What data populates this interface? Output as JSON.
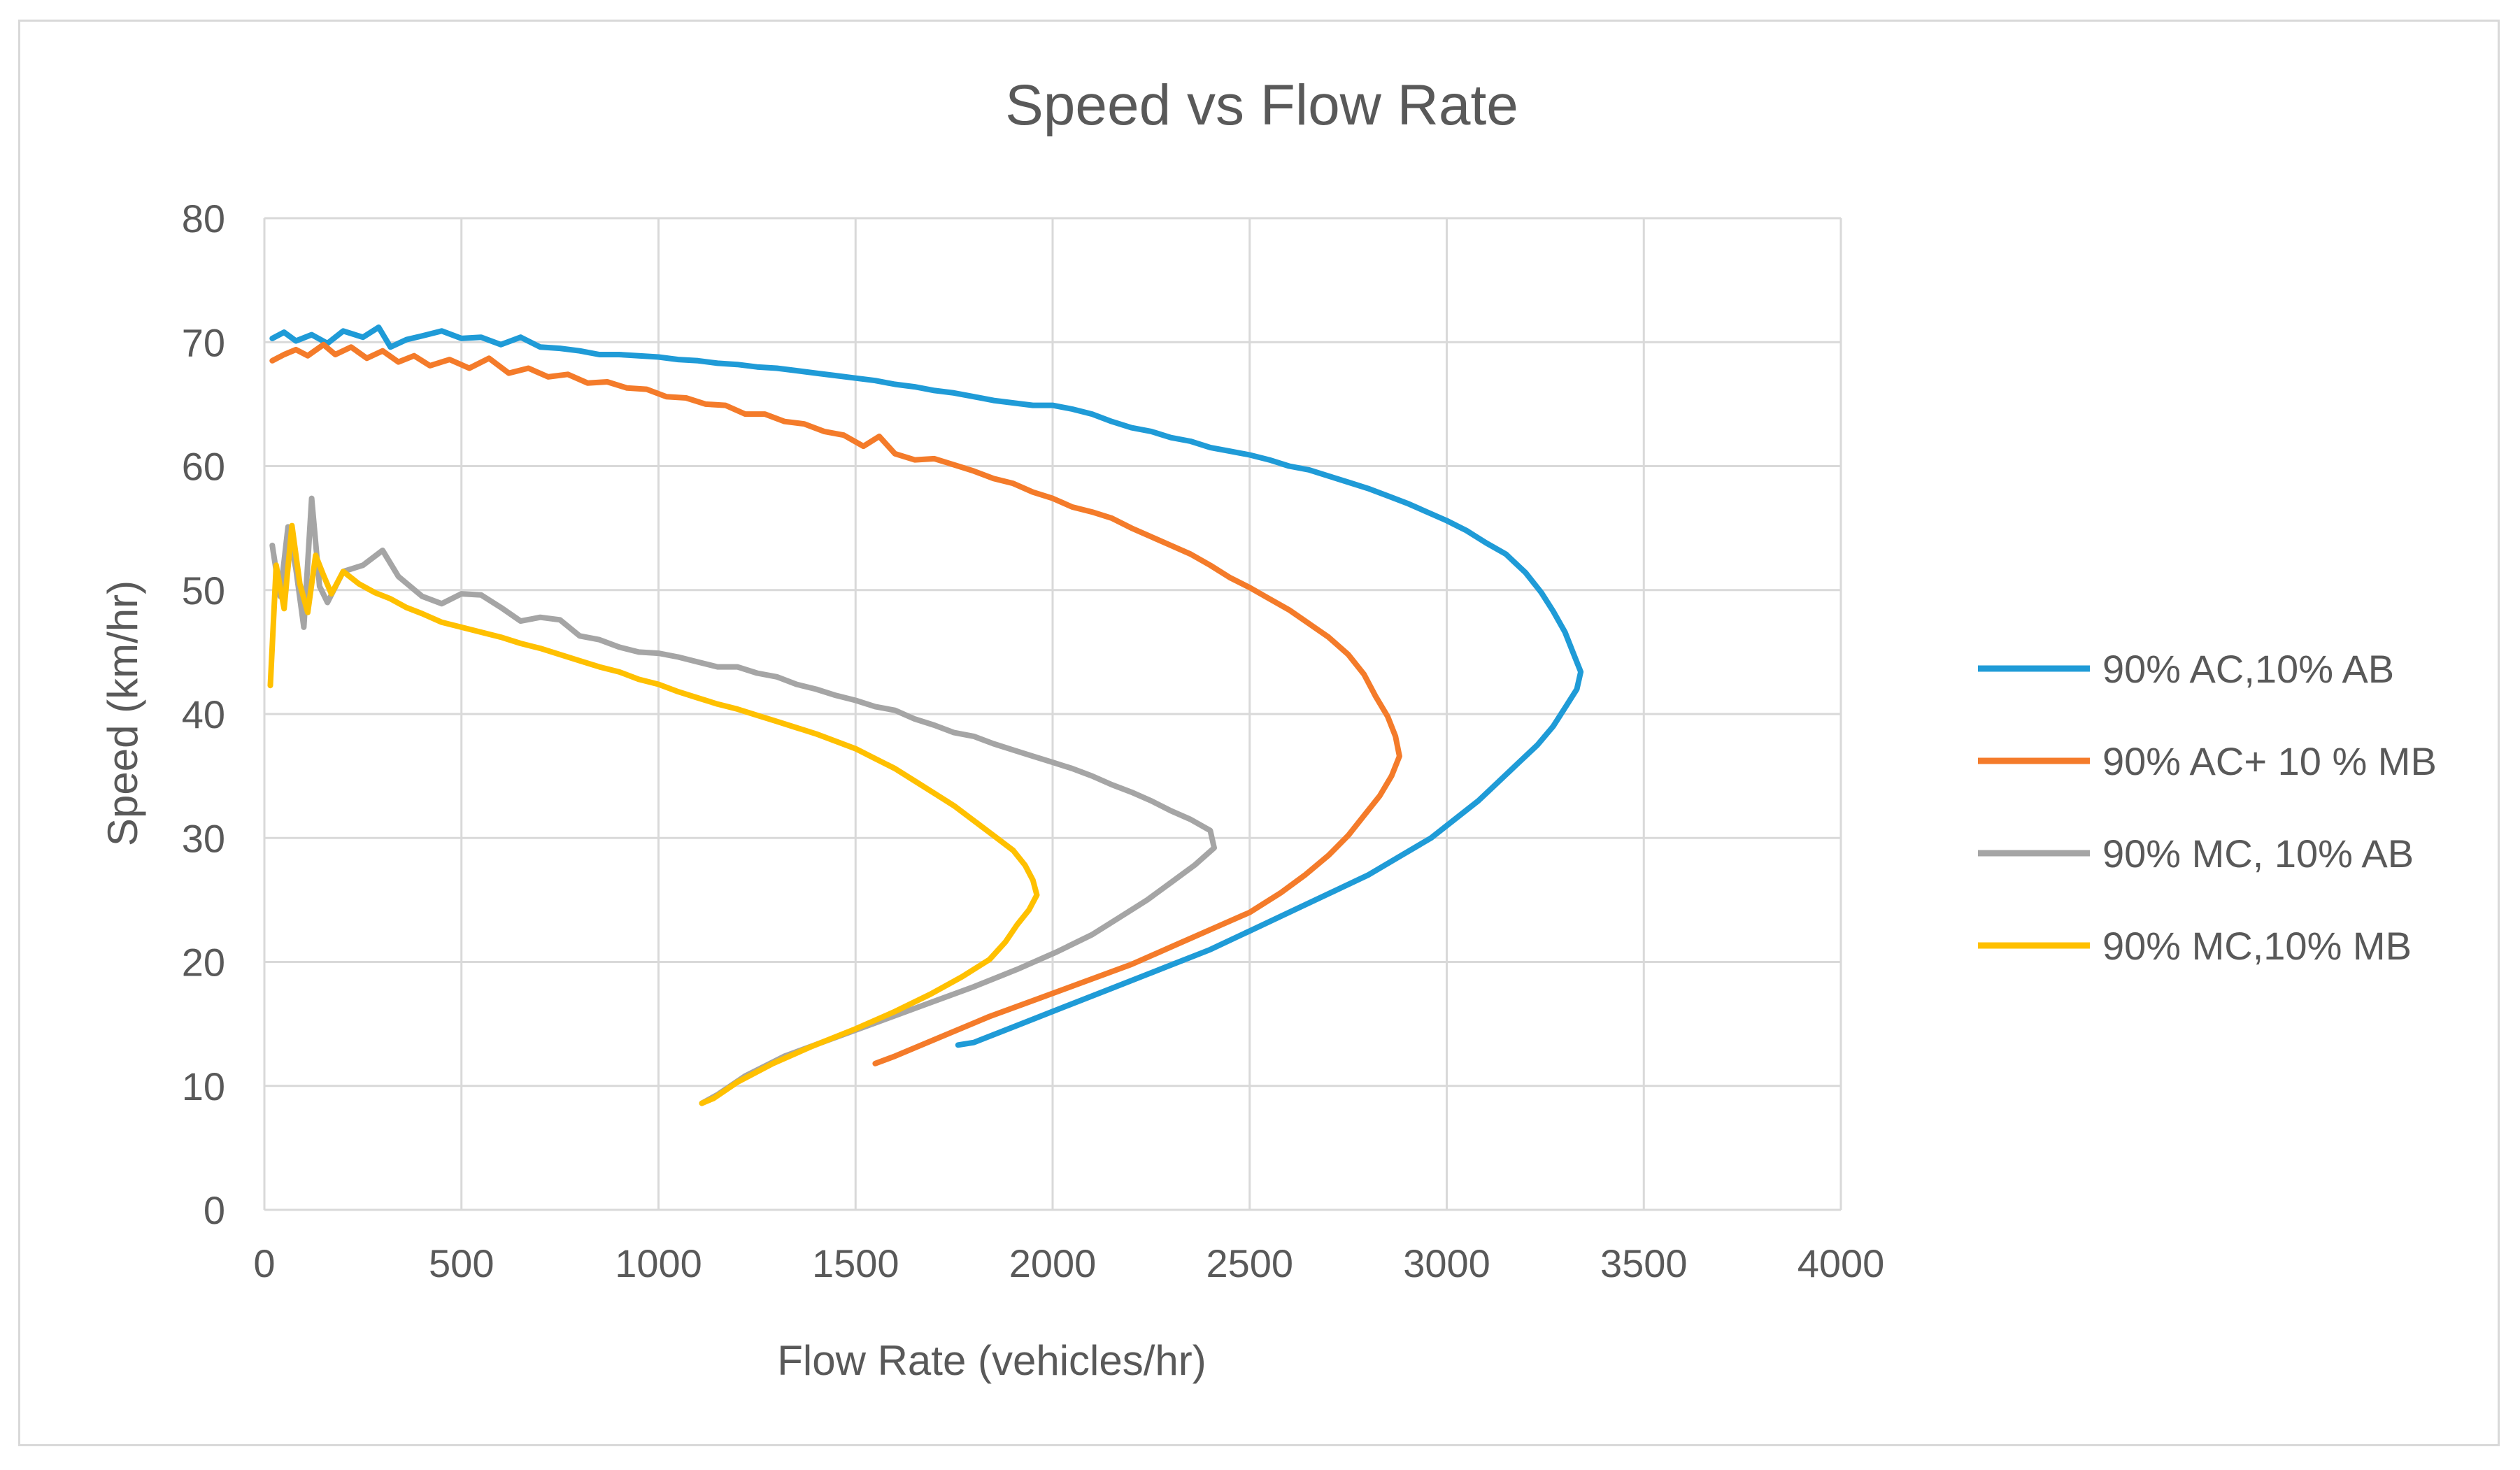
{
  "chart_data": {
    "type": "line",
    "title": "Speed vs Flow Rate",
    "xlabel": "Flow Rate (vehicles/hr)",
    "ylabel": "Speed (km/hr)",
    "xlim": [
      0,
      4000
    ],
    "ylim": [
      0,
      80
    ],
    "xticks": [
      0,
      500,
      1000,
      1500,
      2000,
      2500,
      3000,
      3500,
      4000
    ],
    "yticks": [
      0,
      10,
      20,
      30,
      40,
      50,
      60,
      70,
      80
    ],
    "grid": true,
    "legend_position": "right",
    "series": [
      {
        "name": "90% AC,10% AB",
        "color": "#1f9bd7",
        "points": [
          [
            20,
            70.3
          ],
          [
            50,
            70.8
          ],
          [
            80,
            70.1
          ],
          [
            120,
            70.6
          ],
          [
            160,
            69.9
          ],
          [
            200,
            70.9
          ],
          [
            250,
            70.4
          ],
          [
            290,
            71.2
          ],
          [
            320,
            69.6
          ],
          [
            360,
            70.2
          ],
          [
            400,
            70.5
          ],
          [
            450,
            70.9
          ],
          [
            500,
            70.3
          ],
          [
            550,
            70.4
          ],
          [
            600,
            69.8
          ],
          [
            650,
            70.4
          ],
          [
            700,
            69.6
          ],
          [
            750,
            69.5
          ],
          [
            800,
            69.3
          ],
          [
            850,
            69.0
          ],
          [
            900,
            69.0
          ],
          [
            950,
            68.9
          ],
          [
            1000,
            68.8
          ],
          [
            1050,
            68.6
          ],
          [
            1100,
            68.5
          ],
          [
            1150,
            68.3
          ],
          [
            1200,
            68.2
          ],
          [
            1250,
            68.0
          ],
          [
            1300,
            67.9
          ],
          [
            1350,
            67.7
          ],
          [
            1400,
            67.5
          ],
          [
            1450,
            67.3
          ],
          [
            1500,
            67.1
          ],
          [
            1550,
            66.9
          ],
          [
            1600,
            66.6
          ],
          [
            1650,
            66.4
          ],
          [
            1700,
            66.1
          ],
          [
            1750,
            65.9
          ],
          [
            1800,
            65.6
          ],
          [
            1850,
            65.3
          ],
          [
            1900,
            65.1
          ],
          [
            1950,
            64.9
          ],
          [
            2000,
            64.9
          ],
          [
            2050,
            64.6
          ],
          [
            2100,
            64.2
          ],
          [
            2150,
            63.6
          ],
          [
            2200,
            63.1
          ],
          [
            2250,
            62.8
          ],
          [
            2300,
            62.3
          ],
          [
            2350,
            62.0
          ],
          [
            2400,
            61.5
          ],
          [
            2450,
            61.2
          ],
          [
            2500,
            60.9
          ],
          [
            2550,
            60.5
          ],
          [
            2600,
            60.0
          ],
          [
            2650,
            59.7
          ],
          [
            2700,
            59.2
          ],
          [
            2750,
            58.7
          ],
          [
            2800,
            58.2
          ],
          [
            2850,
            57.6
          ],
          [
            2900,
            57.0
          ],
          [
            2950,
            56.3
          ],
          [
            3000,
            55.6
          ],
          [
            3050,
            54.8
          ],
          [
            3100,
            53.8
          ],
          [
            3150,
            52.9
          ],
          [
            3200,
            51.4
          ],
          [
            3240,
            49.8
          ],
          [
            3270,
            48.3
          ],
          [
            3300,
            46.6
          ],
          [
            3320,
            45.0
          ],
          [
            3340,
            43.4
          ],
          [
            3330,
            42.0
          ],
          [
            3300,
            40.5
          ],
          [
            3270,
            39.0
          ],
          [
            3230,
            37.5
          ],
          [
            3180,
            36.0
          ],
          [
            3130,
            34.5
          ],
          [
            3080,
            33.0
          ],
          [
            3020,
            31.5
          ],
          [
            2960,
            30.0
          ],
          [
            2880,
            28.5
          ],
          [
            2800,
            27.0
          ],
          [
            2700,
            25.5
          ],
          [
            2600,
            24.0
          ],
          [
            2500,
            22.5
          ],
          [
            2400,
            21.0
          ],
          [
            2280,
            19.5
          ],
          [
            2160,
            18.0
          ],
          [
            2040,
            16.5
          ],
          [
            1920,
            15.0
          ],
          [
            1800,
            13.5
          ],
          [
            1760,
            13.3
          ]
        ]
      },
      {
        "name": "90% AC+ 10 % MB",
        "color": "#f47b2a",
        "points": [
          [
            20,
            68.5
          ],
          [
            50,
            69.0
          ],
          [
            80,
            69.4
          ],
          [
            110,
            68.9
          ],
          [
            150,
            69.8
          ],
          [
            180,
            69.0
          ],
          [
            220,
            69.6
          ],
          [
            260,
            68.7
          ],
          [
            300,
            69.3
          ],
          [
            340,
            68.4
          ],
          [
            380,
            68.9
          ],
          [
            420,
            68.1
          ],
          [
            470,
            68.6
          ],
          [
            520,
            67.9
          ],
          [
            570,
            68.7
          ],
          [
            620,
            67.5
          ],
          [
            670,
            67.9
          ],
          [
            720,
            67.2
          ],
          [
            770,
            67.4
          ],
          [
            820,
            66.7
          ],
          [
            870,
            66.8
          ],
          [
            920,
            66.3
          ],
          [
            970,
            66.2
          ],
          [
            1020,
            65.6
          ],
          [
            1070,
            65.5
          ],
          [
            1120,
            65.0
          ],
          [
            1170,
            64.9
          ],
          [
            1220,
            64.2
          ],
          [
            1270,
            64.2
          ],
          [
            1320,
            63.6
          ],
          [
            1370,
            63.4
          ],
          [
            1420,
            62.8
          ],
          [
            1470,
            62.5
          ],
          [
            1520,
            61.6
          ],
          [
            1560,
            62.4
          ],
          [
            1600,
            61.0
          ],
          [
            1650,
            60.5
          ],
          [
            1700,
            60.6
          ],
          [
            1750,
            60.1
          ],
          [
            1800,
            59.6
          ],
          [
            1850,
            59.0
          ],
          [
            1900,
            58.6
          ],
          [
            1950,
            57.9
          ],
          [
            2000,
            57.4
          ],
          [
            2050,
            56.7
          ],
          [
            2100,
            56.3
          ],
          [
            2150,
            55.8
          ],
          [
            2200,
            55.0
          ],
          [
            2250,
            54.3
          ],
          [
            2300,
            53.6
          ],
          [
            2350,
            52.9
          ],
          [
            2400,
            52.0
          ],
          [
            2450,
            51.0
          ],
          [
            2500,
            50.2
          ],
          [
            2550,
            49.3
          ],
          [
            2600,
            48.4
          ],
          [
            2650,
            47.3
          ],
          [
            2700,
            46.2
          ],
          [
            2750,
            44.8
          ],
          [
            2790,
            43.2
          ],
          [
            2820,
            41.4
          ],
          [
            2850,
            39.8
          ],
          [
            2870,
            38.2
          ],
          [
            2880,
            36.6
          ],
          [
            2860,
            35.0
          ],
          [
            2830,
            33.4
          ],
          [
            2790,
            31.8
          ],
          [
            2750,
            30.2
          ],
          [
            2700,
            28.6
          ],
          [
            2640,
            27.0
          ],
          [
            2580,
            25.6
          ],
          [
            2500,
            24.0
          ],
          [
            2400,
            22.6
          ],
          [
            2300,
            21.2
          ],
          [
            2200,
            19.8
          ],
          [
            2080,
            18.4
          ],
          [
            1960,
            17.0
          ],
          [
            1840,
            15.6
          ],
          [
            1720,
            14.0
          ],
          [
            1600,
            12.4
          ],
          [
            1550,
            11.8
          ]
        ]
      },
      {
        "name": "90% MC, 10% AB",
        "color": "#a5a5a5",
        "points": [
          [
            20,
            53.6
          ],
          [
            40,
            49.5
          ],
          [
            60,
            55.1
          ],
          [
            80,
            51.7
          ],
          [
            100,
            47.0
          ],
          [
            120,
            57.4
          ],
          [
            140,
            50.3
          ],
          [
            160,
            49.0
          ],
          [
            200,
            51.5
          ],
          [
            250,
            52.0
          ],
          [
            300,
            53.2
          ],
          [
            340,
            51.1
          ],
          [
            400,
            49.5
          ],
          [
            450,
            48.9
          ],
          [
            500,
            49.7
          ],
          [
            550,
            49.6
          ],
          [
            600,
            48.6
          ],
          [
            650,
            47.5
          ],
          [
            700,
            47.8
          ],
          [
            750,
            47.6
          ],
          [
            800,
            46.3
          ],
          [
            850,
            46.0
          ],
          [
            900,
            45.4
          ],
          [
            950,
            45.0
          ],
          [
            1000,
            44.9
          ],
          [
            1050,
            44.6
          ],
          [
            1100,
            44.2
          ],
          [
            1150,
            43.8
          ],
          [
            1200,
            43.8
          ],
          [
            1250,
            43.3
          ],
          [
            1300,
            43.0
          ],
          [
            1350,
            42.4
          ],
          [
            1400,
            42.0
          ],
          [
            1450,
            41.5
          ],
          [
            1500,
            41.1
          ],
          [
            1550,
            40.6
          ],
          [
            1600,
            40.3
          ],
          [
            1650,
            39.6
          ],
          [
            1700,
            39.1
          ],
          [
            1750,
            38.5
          ],
          [
            1800,
            38.2
          ],
          [
            1850,
            37.6
          ],
          [
            1900,
            37.1
          ],
          [
            1950,
            36.6
          ],
          [
            2000,
            36.1
          ],
          [
            2050,
            35.6
          ],
          [
            2100,
            35.0
          ],
          [
            2150,
            34.3
          ],
          [
            2200,
            33.7
          ],
          [
            2250,
            33.0
          ],
          [
            2300,
            32.2
          ],
          [
            2350,
            31.5
          ],
          [
            2400,
            30.6
          ],
          [
            2410,
            29.2
          ],
          [
            2360,
            27.8
          ],
          [
            2300,
            26.4
          ],
          [
            2240,
            25.0
          ],
          [
            2170,
            23.6
          ],
          [
            2100,
            22.2
          ],
          [
            2010,
            20.8
          ],
          [
            1910,
            19.4
          ],
          [
            1800,
            18.0
          ],
          [
            1680,
            16.6
          ],
          [
            1560,
            15.2
          ],
          [
            1440,
            13.8
          ],
          [
            1320,
            12.4
          ],
          [
            1220,
            10.8
          ],
          [
            1150,
            9.3
          ],
          [
            1110,
            8.6
          ]
        ]
      },
      {
        "name": "90% MC,10% MB",
        "color": "#ffc000",
        "points": [
          [
            15,
            42.3
          ],
          [
            30,
            52.0
          ],
          [
            50,
            48.5
          ],
          [
            70,
            55.2
          ],
          [
            90,
            50.5
          ],
          [
            110,
            48.2
          ],
          [
            130,
            52.8
          ],
          [
            150,
            51.2
          ],
          [
            170,
            49.7
          ],
          [
            200,
            51.5
          ],
          [
            240,
            50.5
          ],
          [
            280,
            49.8
          ],
          [
            320,
            49.3
          ],
          [
            360,
            48.6
          ],
          [
            400,
            48.1
          ],
          [
            450,
            47.4
          ],
          [
            500,
            47.0
          ],
          [
            550,
            46.6
          ],
          [
            600,
            46.2
          ],
          [
            650,
            45.7
          ],
          [
            700,
            45.3
          ],
          [
            750,
            44.8
          ],
          [
            800,
            44.3
          ],
          [
            850,
            43.8
          ],
          [
            900,
            43.4
          ],
          [
            950,
            42.8
          ],
          [
            1000,
            42.4
          ],
          [
            1050,
            41.8
          ],
          [
            1100,
            41.3
          ],
          [
            1150,
            40.8
          ],
          [
            1200,
            40.4
          ],
          [
            1250,
            39.9
          ],
          [
            1300,
            39.4
          ],
          [
            1350,
            38.9
          ],
          [
            1400,
            38.4
          ],
          [
            1450,
            37.8
          ],
          [
            1500,
            37.2
          ],
          [
            1550,
            36.4
          ],
          [
            1600,
            35.6
          ],
          [
            1650,
            34.6
          ],
          [
            1700,
            33.6
          ],
          [
            1750,
            32.6
          ],
          [
            1800,
            31.4
          ],
          [
            1850,
            30.2
          ],
          [
            1900,
            29.0
          ],
          [
            1930,
            27.8
          ],
          [
            1950,
            26.6
          ],
          [
            1960,
            25.4
          ],
          [
            1940,
            24.2
          ],
          [
            1910,
            23.0
          ],
          [
            1880,
            21.6
          ],
          [
            1840,
            20.2
          ],
          [
            1770,
            18.8
          ],
          [
            1690,
            17.4
          ],
          [
            1600,
            16.0
          ],
          [
            1500,
            14.6
          ],
          [
            1390,
            13.2
          ],
          [
            1290,
            11.8
          ],
          [
            1200,
            10.3
          ],
          [
            1140,
            9.0
          ],
          [
            1110,
            8.6
          ]
        ]
      }
    ]
  }
}
